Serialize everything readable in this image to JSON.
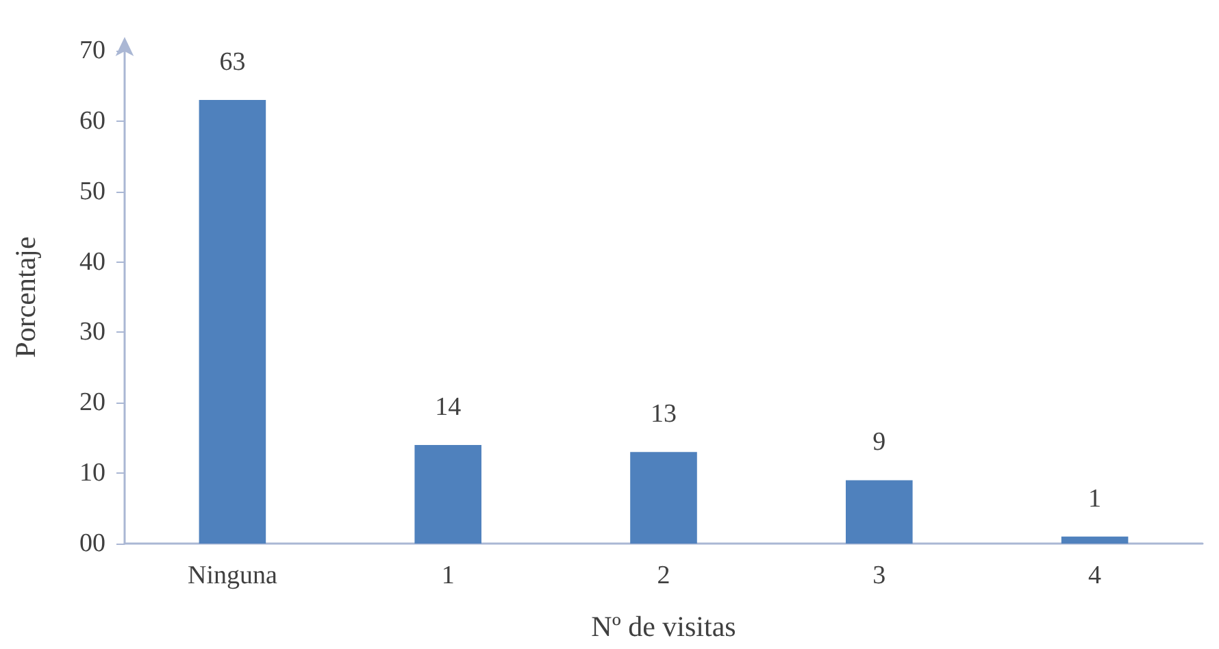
{
  "chart_data": {
    "type": "bar",
    "xlabel": "Nº de visitas",
    "ylabel": "Porcentaje",
    "categories": [
      "Ninguna",
      "1",
      "2",
      "3",
      "4"
    ],
    "values": [
      63,
      14,
      13,
      9,
      1
    ],
    "color": "#4f81bd",
    "ylim": [
      0,
      70
    ],
    "yticks": [
      {
        "value": 0,
        "label": "00"
      },
      10,
      20,
      30,
      40,
      50,
      60,
      70
    ],
    "grid": false,
    "data_labels": true
  }
}
